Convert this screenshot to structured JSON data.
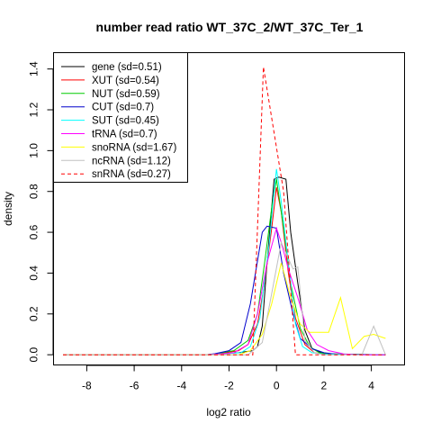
{
  "chart_data": {
    "type": "line",
    "title": "number read ratio WT_37C_2/WT_37C_Ter_1",
    "xlabel": "log2 ratio",
    "ylabel": "density",
    "xlim": [
      -9.4,
      5.4
    ],
    "ylim": [
      -0.05,
      1.48
    ],
    "x_ticks": [
      -8,
      -6,
      -4,
      -2,
      0,
      2,
      4
    ],
    "y_ticks": [
      0.0,
      0.2,
      0.4,
      0.6,
      0.8,
      1.0,
      1.2,
      1.4
    ],
    "legend_position": "top-left",
    "series": [
      {
        "name": "gene (sd=0.51)",
        "color": "#000000",
        "dash": false,
        "points": [
          [
            -9,
            0
          ],
          [
            -3,
            0
          ],
          [
            -2.6,
            0.003
          ],
          [
            -1.6,
            0.01
          ],
          [
            -1,
            0.02
          ],
          [
            -0.8,
            0.04
          ],
          [
            -0.6,
            0.14
          ],
          [
            -0.4,
            0.45
          ],
          [
            -0.1,
            0.86
          ],
          [
            0.1,
            0.87
          ],
          [
            0.4,
            0.86
          ],
          [
            0.6,
            0.6
          ],
          [
            0.9,
            0.35
          ],
          [
            1.2,
            0.12
          ],
          [
            1.5,
            0.03
          ],
          [
            2,
            0.005
          ],
          [
            4.6,
            0
          ]
        ]
      },
      {
        "name": "XUT (sd=0.54)",
        "color": "#ff0000",
        "dash": false,
        "points": [
          [
            -9,
            0
          ],
          [
            -3,
            0
          ],
          [
            -2.5,
            0.003
          ],
          [
            -1.6,
            0.02
          ],
          [
            -1.2,
            0.05
          ],
          [
            -0.8,
            0.15
          ],
          [
            -0.5,
            0.35
          ],
          [
            -0.2,
            0.62
          ],
          [
            0,
            0.82
          ],
          [
            0.2,
            0.7
          ],
          [
            0.5,
            0.4
          ],
          [
            0.8,
            0.18
          ],
          [
            1.2,
            0.05
          ],
          [
            1.6,
            0.01
          ],
          [
            2,
            0.003
          ],
          [
            4.6,
            0
          ]
        ]
      },
      {
        "name": "NUT (sd=0.59)",
        "color": "#00cc00",
        "dash": false,
        "points": [
          [
            -9,
            0
          ],
          [
            -3,
            0
          ],
          [
            -2.6,
            0.003
          ],
          [
            -1.8,
            0.02
          ],
          [
            -1.2,
            0.07
          ],
          [
            -0.8,
            0.2
          ],
          [
            -0.5,
            0.45
          ],
          [
            -0.2,
            0.72
          ],
          [
            0,
            0.86
          ],
          [
            0.3,
            0.62
          ],
          [
            0.6,
            0.35
          ],
          [
            1,
            0.13
          ],
          [
            1.4,
            0.04
          ],
          [
            1.8,
            0.01
          ],
          [
            2.4,
            0.003
          ],
          [
            4.6,
            0
          ]
        ]
      },
      {
        "name": "CUT (sd=0.7)",
        "color": "#0000cc",
        "dash": false,
        "points": [
          [
            -9,
            0
          ],
          [
            -3,
            0
          ],
          [
            -2.6,
            0.005
          ],
          [
            -2,
            0.02
          ],
          [
            -1.5,
            0.06
          ],
          [
            -1.1,
            0.25
          ],
          [
            -0.6,
            0.6
          ],
          [
            -0.4,
            0.63
          ],
          [
            0,
            0.62
          ],
          [
            0.3,
            0.4
          ],
          [
            0.7,
            0.2
          ],
          [
            1,
            0.08
          ],
          [
            1.5,
            0.03
          ],
          [
            2,
            0.01
          ],
          [
            2.5,
            0.003
          ],
          [
            4.6,
            0
          ]
        ]
      },
      {
        "name": "SUT (sd=0.45)",
        "color": "#00ffff",
        "dash": false,
        "points": [
          [
            -9,
            0
          ],
          [
            -3,
            0
          ],
          [
            -2.5,
            0.003
          ],
          [
            -1.5,
            0.01
          ],
          [
            -1.1,
            0.04
          ],
          [
            -0.7,
            0.18
          ],
          [
            -0.3,
            0.55
          ],
          [
            -0.1,
            0.8
          ],
          [
            0,
            0.91
          ],
          [
            0.2,
            0.75
          ],
          [
            0.5,
            0.45
          ],
          [
            0.8,
            0.15
          ],
          [
            1.1,
            0.04
          ],
          [
            1.5,
            0.01
          ],
          [
            2,
            0.003
          ],
          [
            4.6,
            0
          ]
        ]
      },
      {
        "name": "tRNA (sd=0.7)",
        "color": "#ff00ff",
        "dash": false,
        "points": [
          [
            -9,
            0
          ],
          [
            -3,
            0
          ],
          [
            -2.5,
            0.003
          ],
          [
            -1.8,
            0.01
          ],
          [
            -1.2,
            0.05
          ],
          [
            -0.8,
            0.2
          ],
          [
            -0.4,
            0.45
          ],
          [
            0,
            0.62
          ],
          [
            0.2,
            0.55
          ],
          [
            0.5,
            0.42
          ],
          [
            0.9,
            0.28
          ],
          [
            1.3,
            0.12
          ],
          [
            1.7,
            0.05
          ],
          [
            2.2,
            0.02
          ],
          [
            2.8,
            0.005
          ],
          [
            3.4,
            0
          ],
          [
            4.6,
            0
          ]
        ]
      },
      {
        "name": "snoRNA (sd=1.67)",
        "color": "#ffff00",
        "dash": false,
        "points": [
          [
            -9,
            0
          ],
          [
            -3,
            0
          ],
          [
            -1.6,
            0
          ],
          [
            -1.1,
            0.02
          ],
          [
            -0.6,
            0.1
          ],
          [
            -0.2,
            0.25
          ],
          [
            0.2,
            0.45
          ],
          [
            0.6,
            0.28
          ],
          [
            1,
            0.15
          ],
          [
            1.4,
            0.11
          ],
          [
            1.8,
            0.11
          ],
          [
            2.2,
            0.11
          ],
          [
            2.7,
            0.28
          ],
          [
            3.2,
            0.03
          ],
          [
            3.7,
            0.09
          ],
          [
            4.1,
            0.1
          ],
          [
            4.6,
            0.08
          ]
        ]
      },
      {
        "name": "ncRNA (sd=1.12)",
        "color": "#c0c0c0",
        "dash": false,
        "points": [
          [
            -9,
            0
          ],
          [
            -3,
            0
          ],
          [
            -1.2,
            0
          ],
          [
            -0.6,
            0.06
          ],
          [
            -0.2,
            0.3
          ],
          [
            0.2,
            0.55
          ],
          [
            0.7,
            0.42
          ],
          [
            0.9,
            0.43
          ],
          [
            1.2,
            0.07
          ],
          [
            1.6,
            0.01
          ],
          [
            2,
            0
          ],
          [
            3.6,
            0
          ],
          [
            4.1,
            0.14
          ],
          [
            4.6,
            0
          ]
        ]
      },
      {
        "name": "snRNA (sd=0.27)",
        "color": "#ff0000",
        "dash": true,
        "points": [
          [
            -9,
            0
          ],
          [
            -1,
            0
          ],
          [
            -0.55,
            1.41
          ],
          [
            0.3,
            0.8
          ],
          [
            0.8,
            0
          ],
          [
            4.6,
            0
          ]
        ]
      }
    ]
  }
}
